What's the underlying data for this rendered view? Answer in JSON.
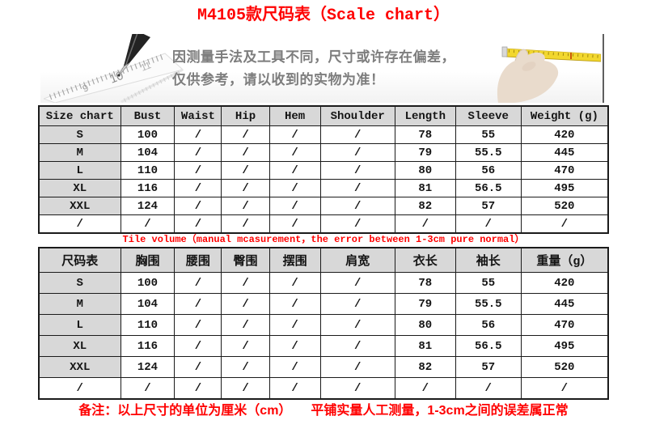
{
  "page": {
    "title": "M4105款尺码表（Scale chart）"
  },
  "banner": {
    "line1": "因测量手法及工具不同，尺寸或许存在偏差，",
    "line2": "仅供参考，请以收到的实物为准！",
    "left_image": "pencil-and-ruler-sketch",
    "right_image": "hand-with-measuring-tape",
    "ruler_numbers": [
      "9",
      "10",
      "11"
    ]
  },
  "middle_note": "Tile volume（manual mcasurement，the error between 1-3cm pure normal）",
  "bottom_note": "备注：以上尺寸的单位为厘米（cm）　　平铺实量人工测量，1-3cm之间的误差属正常",
  "colors": {
    "accent_red": "#ff0000",
    "header_bg": "#d8d8d8",
    "border": "#1b1b1b",
    "banner_text_gray": "#7d7d7d",
    "tape_yellow": "#f2d72e"
  },
  "table_en": {
    "headers": [
      "Size chart",
      "Bust",
      "Waist",
      "Hip",
      "Hem",
      "Shoulder",
      "Length",
      "Sleeve",
      "Weight (g)"
    ],
    "rows": [
      [
        "S",
        "100",
        "/",
        "/",
        "/",
        "/",
        "78",
        "55",
        "420"
      ],
      [
        "M",
        "104",
        "/",
        "/",
        "/",
        "/",
        "79",
        "55.5",
        "445"
      ],
      [
        "L",
        "110",
        "/",
        "/",
        "/",
        "/",
        "80",
        "56",
        "470"
      ],
      [
        "XL",
        "116",
        "/",
        "/",
        "/",
        "/",
        "81",
        "56.5",
        "495"
      ],
      [
        "XXL",
        "124",
        "/",
        "/",
        "/",
        "/",
        "82",
        "57",
        "520"
      ],
      [
        "/",
        "/",
        "/",
        "/",
        "/",
        "/",
        "/",
        "/",
        "/"
      ]
    ]
  },
  "table_cn": {
    "headers": [
      "尺码表",
      "胸围",
      "腰围",
      "臀围",
      "摆围",
      "肩宽",
      "衣长",
      "袖长",
      "重量（g）"
    ],
    "rows": [
      [
        "S",
        "100",
        "/",
        "/",
        "/",
        "/",
        "78",
        "55",
        "420"
      ],
      [
        "M",
        "104",
        "/",
        "/",
        "/",
        "/",
        "79",
        "55.5",
        "445"
      ],
      [
        "L",
        "110",
        "/",
        "/",
        "/",
        "/",
        "80",
        "56",
        "470"
      ],
      [
        "XL",
        "116",
        "/",
        "/",
        "/",
        "/",
        "81",
        "56.5",
        "495"
      ],
      [
        "XXL",
        "124",
        "/",
        "/",
        "/",
        "/",
        "82",
        "57",
        "520"
      ],
      [
        "/",
        "/",
        "/",
        "/",
        "/",
        "/",
        "/",
        "/",
        "/"
      ]
    ]
  }
}
